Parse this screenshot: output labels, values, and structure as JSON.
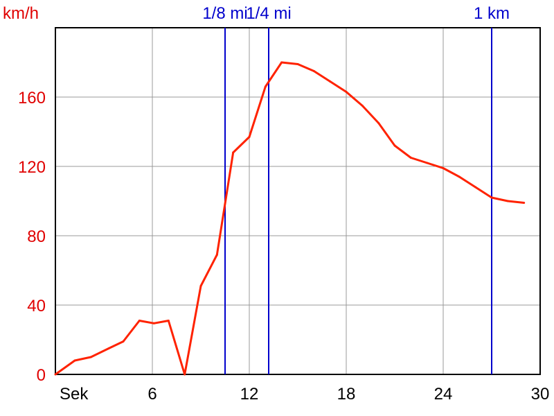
{
  "chart_data": {
    "type": "line",
    "ylabel": "km/h",
    "xlabel": "Sek",
    "xlim": [
      0,
      30
    ],
    "ylim": [
      0,
      200
    ],
    "x_ticks": [
      6,
      12,
      18,
      24,
      30
    ],
    "y_ticks": [
      0,
      40,
      80,
      120,
      160
    ],
    "grid": true,
    "series": [
      {
        "color": "#ff2200",
        "x": [
          0,
          1.2,
          2.2,
          3.3,
          4.2,
          5.2,
          6.1,
          7.0,
          8.0,
          9.0,
          10.0,
          11.0,
          12.0,
          13.0,
          14.0,
          15.0,
          16.0,
          17.0,
          18.0,
          19.0,
          20.0,
          21.0,
          22.0,
          23.0,
          24.0,
          25.0,
          26.0,
          27.0,
          28.0,
          29.0
        ],
        "y": [
          0,
          8,
          10,
          15,
          19,
          31,
          29.5,
          31,
          0,
          51,
          69,
          128,
          137,
          166,
          180,
          179,
          175,
          169,
          163,
          155,
          145,
          132,
          125,
          122,
          119,
          114,
          108,
          102,
          100,
          99
        ]
      }
    ],
    "markers": [
      {
        "label": "1/8 mi",
        "x": 10.5,
        "color": "#0000cc"
      },
      {
        "label": "1/4 mi",
        "x": 13.2,
        "color": "#0000cc"
      },
      {
        "label": "1 km",
        "x": 27.0,
        "color": "#0000cc"
      }
    ]
  }
}
